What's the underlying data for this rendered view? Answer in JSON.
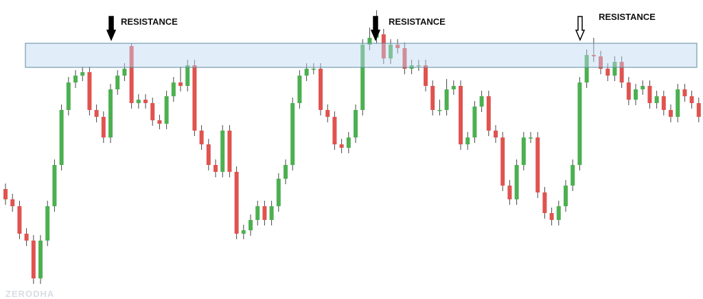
{
  "chart_data": {
    "type": "candlestick",
    "up_color": "#4cb050",
    "down_color": "#e0534f",
    "ylim": [
      0,
      435
    ],
    "open": [
      160,
      145,
      135,
      95,
      85,
      30,
      85,
      135,
      195,
      275,
      315,
      325,
      330,
      275,
      265,
      235,
      305,
      325,
      368,
      285,
      290,
      285,
      260,
      255,
      295,
      315,
      310,
      340,
      245,
      225,
      195,
      185,
      245,
      185,
      95,
      100,
      115,
      135,
      115,
      135,
      175,
      195,
      285,
      325,
      335,
      335,
      275,
      265,
      225,
      220,
      235,
      275,
      370,
      380,
      385,
      350,
      370,
      365,
      335,
      340,
      340,
      310,
      275,
      275,
      305,
      310,
      225,
      235,
      280,
      295,
      245,
      235,
      165,
      145,
      195,
      235,
      235,
      155,
      125,
      115,
      135,
      165,
      195,
      315,
      355,
      353,
      335,
      325,
      345,
      315,
      290,
      305,
      310,
      285,
      295,
      275,
      265,
      305,
      295,
      285
    ],
    "high": [
      168,
      153,
      143,
      103,
      93,
      93,
      143,
      203,
      283,
      323,
      333,
      338,
      338,
      283,
      273,
      313,
      333,
      343,
      372,
      298,
      298,
      293,
      268,
      303,
      323,
      338,
      348,
      348,
      253,
      233,
      203,
      253,
      253,
      193,
      108,
      123,
      143,
      143,
      143,
      183,
      203,
      293,
      333,
      343,
      343,
      343,
      283,
      273,
      233,
      243,
      283,
      378,
      395,
      420,
      393,
      378,
      378,
      373,
      348,
      348,
      348,
      318,
      290,
      320,
      318,
      318,
      243,
      288,
      303,
      303,
      253,
      243,
      173,
      203,
      243,
      243,
      243,
      163,
      133,
      143,
      173,
      203,
      323,
      363,
      380,
      361,
      343,
      353,
      353,
      323,
      313,
      318,
      318,
      303,
      303,
      283,
      313,
      313,
      303,
      293
    ],
    "low": [
      137,
      127,
      87,
      77,
      22,
      22,
      77,
      127,
      187,
      267,
      307,
      317,
      267,
      257,
      227,
      227,
      297,
      317,
      277,
      277,
      277,
      252,
      247,
      247,
      287,
      302,
      302,
      237,
      217,
      187,
      177,
      177,
      177,
      87,
      87,
      92,
      107,
      107,
      107,
      127,
      167,
      187,
      277,
      317,
      327,
      267,
      257,
      217,
      212,
      212,
      227,
      267,
      362,
      372,
      342,
      342,
      357,
      327,
      327,
      332,
      302,
      267,
      267,
      267,
      297,
      217,
      217,
      227,
      272,
      237,
      227,
      157,
      137,
      137,
      187,
      227,
      147,
      117,
      107,
      107,
      127,
      157,
      187,
      307,
      345,
      327,
      317,
      317,
      307,
      282,
      282,
      297,
      277,
      277,
      267,
      257,
      257,
      287,
      277,
      257
    ],
    "close": [
      145,
      135,
      95,
      85,
      30,
      85,
      135,
      195,
      275,
      315,
      325,
      330,
      275,
      265,
      235,
      305,
      325,
      335,
      285,
      290,
      285,
      260,
      255,
      295,
      315,
      310,
      340,
      245,
      225,
      195,
      185,
      245,
      185,
      95,
      100,
      115,
      135,
      115,
      135,
      175,
      195,
      285,
      325,
      335,
      335,
      275,
      265,
      225,
      220,
      235,
      275,
      370,
      380,
      385,
      350,
      370,
      365,
      335,
      340,
      340,
      310,
      275,
      275,
      305,
      310,
      225,
      235,
      280,
      295,
      245,
      235,
      165,
      145,
      195,
      235,
      235,
      155,
      125,
      115,
      135,
      165,
      195,
      315,
      355,
      353,
      335,
      325,
      345,
      315,
      290,
      305,
      310,
      285,
      295,
      275,
      265,
      305,
      295,
      285,
      265
    ],
    "resistance_zone": [
      337,
      372
    ],
    "annotations": [
      "RESISTANCE",
      "RESISTANCE",
      "RESISTANCE"
    ],
    "watermark": "ZERODHA"
  }
}
